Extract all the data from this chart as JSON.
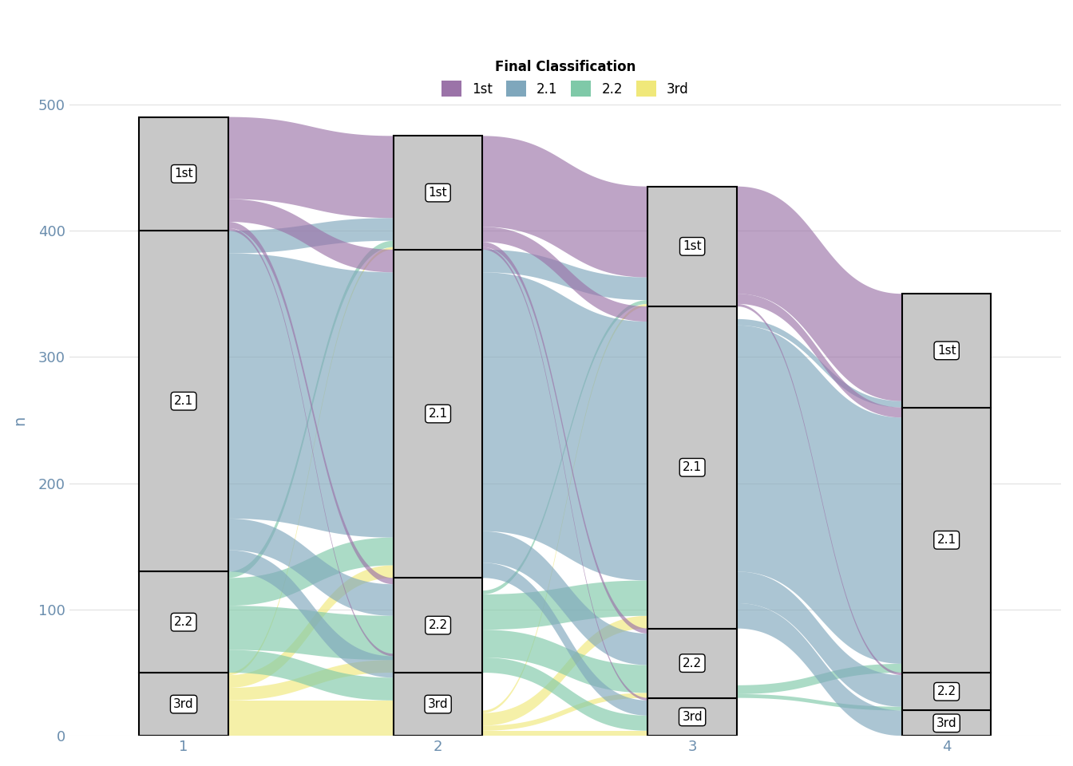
{
  "years": [
    1,
    2,
    3,
    4
  ],
  "grades": [
    "3rd",
    "2.2",
    "2.1",
    "1st"
  ],
  "colors": {
    "1st": "#9b73a8",
    "2.1": "#7fa7bc",
    "2.2": "#7fc9a8",
    "3rd": "#f0e87a"
  },
  "bar_color": "#c8c8c8",
  "bar_edge_color": "#000000",
  "background_color": "#ffffff",
  "grid_color": "#e0e0e0",
  "ylabel": "n",
  "ylim": [
    0,
    500
  ],
  "yticks": [
    0,
    100,
    200,
    300,
    400,
    500
  ],
  "legend_title": "Final Classification",
  "legend_grades": [
    "1st",
    "2.1",
    "2.2",
    "3rd"
  ],
  "counts": {
    "1": {
      "1st": 90,
      "2.1": 270,
      "2.2": 80,
      "3rd": 50
    },
    "2": {
      "1st": 90,
      "2.1": 260,
      "2.2": 75,
      "3rd": 50
    },
    "3": {
      "1st": 95,
      "2.1": 255,
      "2.2": 55,
      "3rd": 30
    },
    "4": {
      "1st": 90,
      "2.1": 210,
      "2.2": 30,
      "3rd": 20
    }
  },
  "trans_12": {
    "1st": {
      "1st": 65,
      "2.1": 18,
      "2.2": 5,
      "3rd": 2
    },
    "2.1": {
      "1st": 18,
      "2.1": 210,
      "2.2": 25,
      "3rd": 17
    },
    "2.2": {
      "1st": 5,
      "2.1": 22,
      "2.2": 35,
      "3rd": 18
    },
    "3rd": {
      "1st": 2,
      "2.1": 10,
      "2.2": 10,
      "3rd": 28
    }
  },
  "trans_23": {
    "1st": {
      "1st": 72,
      "2.1": 12,
      "2.2": 4,
      "3rd": 2
    },
    "2.1": {
      "1st": 18,
      "2.1": 205,
      "2.2": 25,
      "3rd": 12
    },
    "2.2": {
      "1st": 3,
      "2.1": 28,
      "2.2": 22,
      "3rd": 12
    },
    "3rd": {
      "1st": 2,
      "2.1": 10,
      "2.2": 4,
      "3rd": 4
    }
  },
  "trans_34": {
    "1st": {
      "1st": 85,
      "2.1": 8,
      "2.2": 2,
      "3rd": 0
    },
    "2.1": {
      "1st": 5,
      "2.1": 195,
      "2.2": 25,
      "3rd": 20
    },
    "2.2": {
      "1st": 0,
      "2.1": 7,
      "2.2": 3,
      "3rd": 0
    },
    "3rd": {
      "1st": 0,
      "2.1": 0,
      "2.2": 0,
      "3rd": 0
    }
  },
  "bar_width": 0.35,
  "alpha": 0.65,
  "figsize": [
    13.44,
    9.6
  ],
  "dpi": 100
}
